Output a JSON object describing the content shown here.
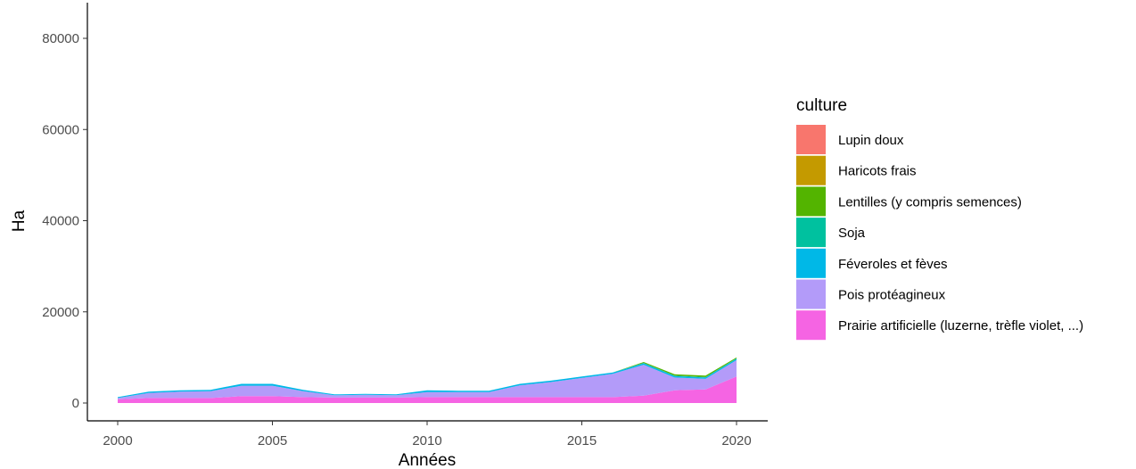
{
  "chart_data": {
    "type": "area",
    "stacked": true,
    "title": "",
    "xlabel": "Années",
    "ylabel": "Ha",
    "xlim": [
      2000,
      2020
    ],
    "ylim": [
      0,
      80000
    ],
    "xticks": [
      2000,
      2005,
      2010,
      2015,
      2020
    ],
    "yticks": [
      0,
      20000,
      40000,
      60000,
      80000
    ],
    "grid": false,
    "legend_position": "right",
    "legend_title": "culture",
    "x": [
      2000,
      2001,
      2002,
      2003,
      2004,
      2005,
      2006,
      2007,
      2008,
      2009,
      2010,
      2011,
      2012,
      2013,
      2014,
      2015,
      2016,
      2017,
      2018,
      2019,
      2020
    ],
    "series": [
      {
        "name": "Prairie artificielle (luzerne, trèfle violet, ...)",
        "color": "#F564E3",
        "values": [
          800,
          1100,
          1100,
          1100,
          1500,
          1500,
          1300,
          1200,
          1200,
          1200,
          1300,
          1300,
          1300,
          1300,
          1300,
          1300,
          1300,
          1600,
          2800,
          3000,
          5800
        ]
      },
      {
        "name": "Pois protéagineux",
        "color": "#B39BF9",
        "values": [
          300,
          1100,
          1400,
          1500,
          2300,
          2300,
          1300,
          500,
          600,
          500,
          1100,
          1100,
          1100,
          2600,
          3300,
          4200,
          5100,
          6800,
          2800,
          2300,
          3600
        ]
      },
      {
        "name": "Féveroles et fèves",
        "color": "#00B8E7",
        "values": [
          200,
          300,
          300,
          300,
          400,
          400,
          300,
          200,
          200,
          200,
          400,
          300,
          300,
          300,
          300,
          300,
          300,
          300,
          300,
          300,
          300
        ]
      },
      {
        "name": "Soja",
        "color": "#00C19F",
        "values": [
          0,
          0,
          0,
          0,
          0,
          0,
          0,
          0,
          0,
          0,
          0,
          0,
          0,
          0,
          0,
          0,
          0,
          100,
          100,
          100,
          100
        ]
      },
      {
        "name": "Lentilles (y compris semences)",
        "color": "#53B400",
        "values": [
          0,
          0,
          0,
          0,
          0,
          0,
          0,
          0,
          0,
          0,
          0,
          0,
          0,
          0,
          0,
          0,
          0,
          200,
          300,
          300,
          200
        ]
      },
      {
        "name": "Haricots frais",
        "color": "#C49A00",
        "values": [
          0,
          0,
          0,
          0,
          0,
          0,
          0,
          0,
          0,
          0,
          0,
          0,
          0,
          0,
          0,
          0,
          0,
          0,
          0,
          0,
          0
        ]
      },
      {
        "name": "Lupin doux",
        "color": "#F8766D",
        "values": [
          0,
          0,
          0,
          0,
          0,
          0,
          0,
          0,
          0,
          0,
          0,
          0,
          0,
          0,
          0,
          0,
          0,
          0,
          0,
          0,
          0
        ]
      }
    ],
    "legend_order": [
      "Lupin doux",
      "Haricots frais",
      "Lentilles (y compris semences)",
      "Soja",
      "Féveroles et fèves",
      "Pois protéagineux",
      "Prairie artificielle (luzerne, trèfle violet, ...)"
    ]
  }
}
